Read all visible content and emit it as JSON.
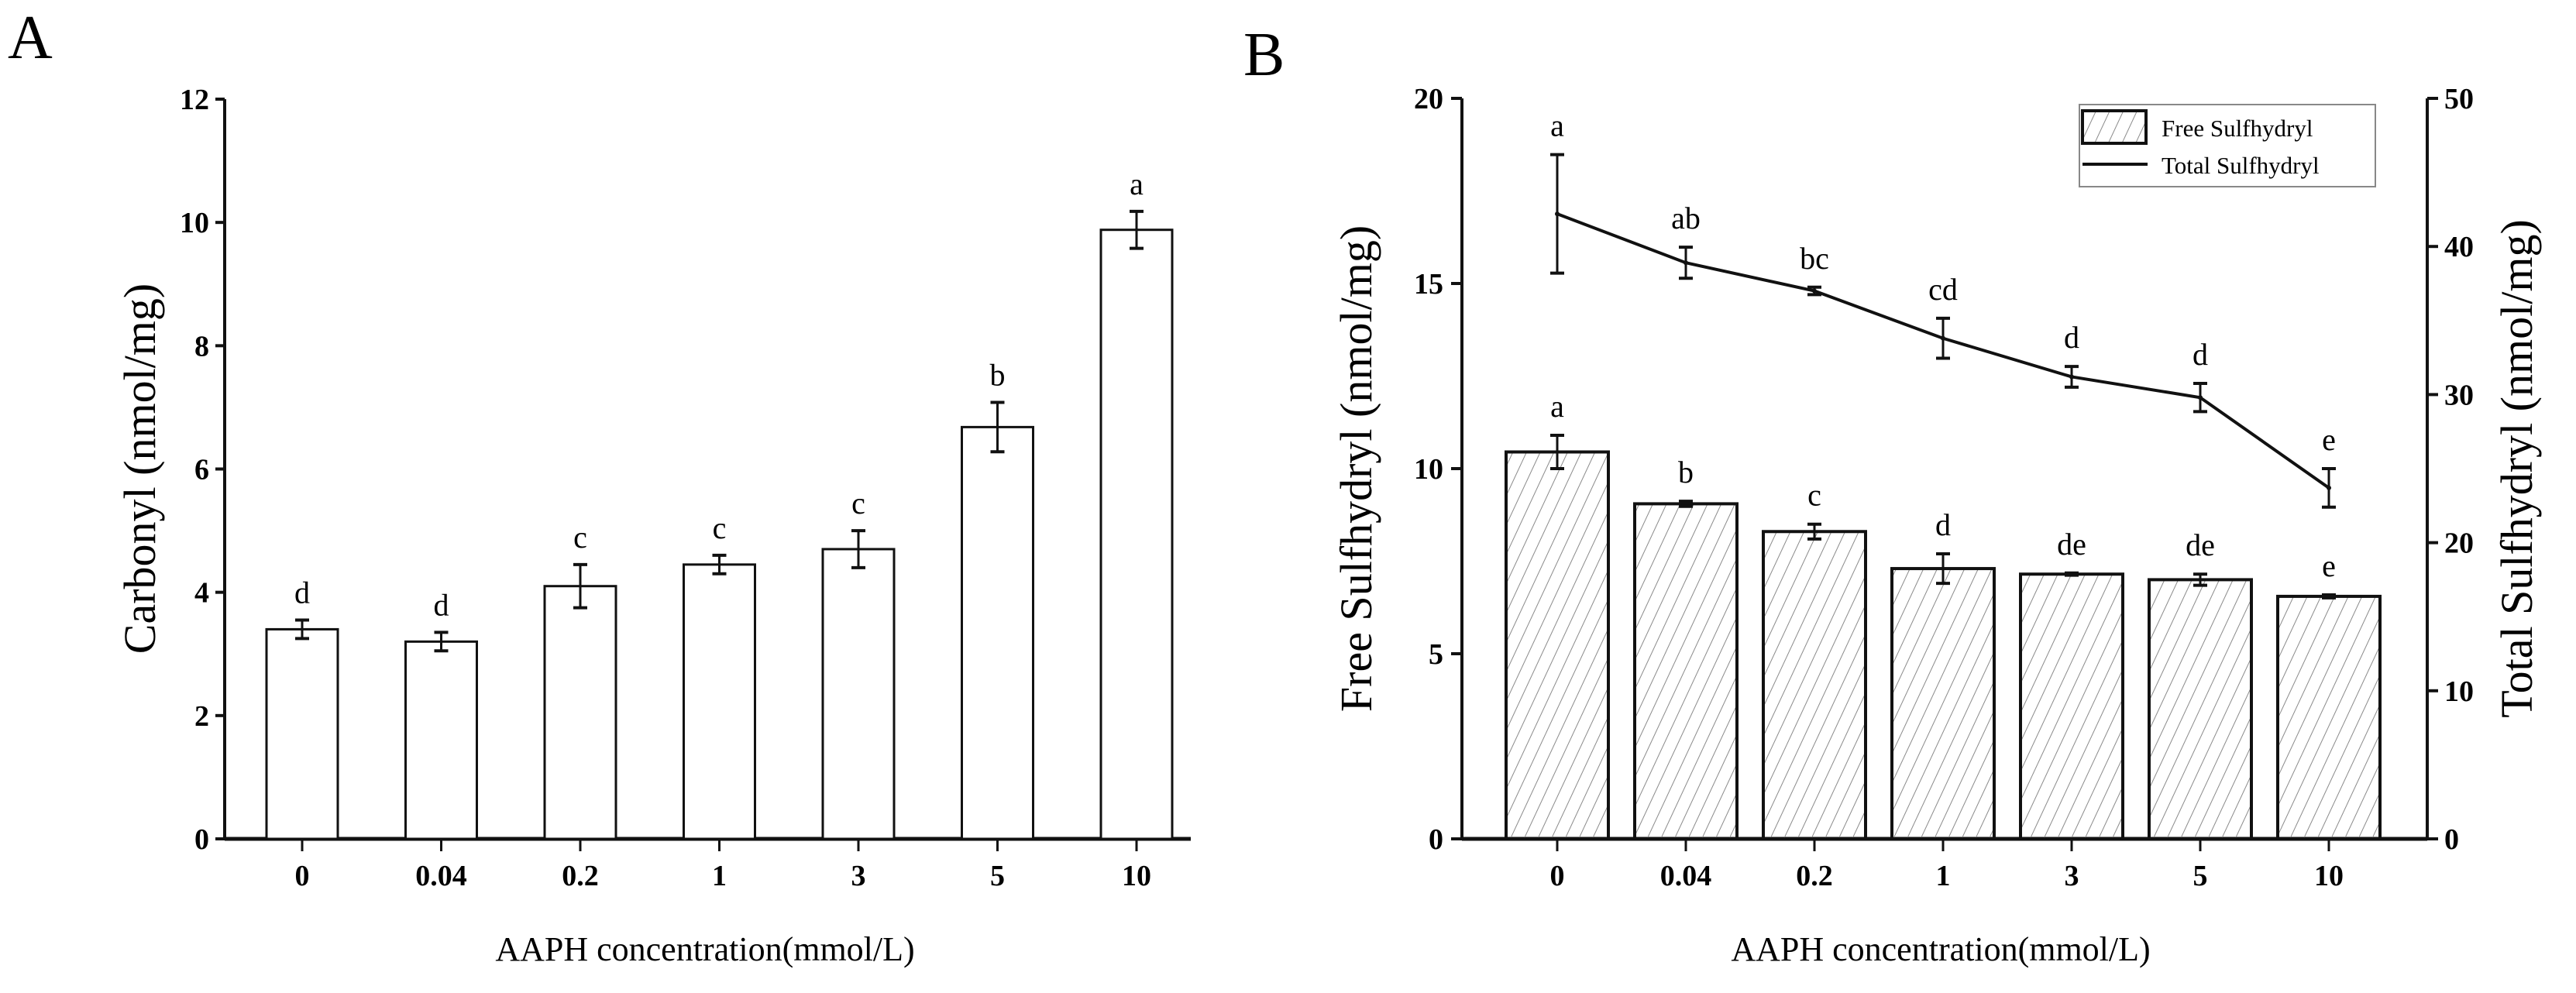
{
  "chart_data": [
    {
      "panel": "A",
      "type": "bar",
      "categories": [
        "0",
        "0.04",
        "0.2",
        "1",
        "3",
        "5",
        "10"
      ],
      "values": [
        3.4,
        3.2,
        4.1,
        4.45,
        4.7,
        6.68,
        9.88
      ],
      "errors": [
        0.15,
        0.15,
        0.35,
        0.15,
        0.3,
        0.4,
        0.3
      ],
      "significance": [
        "d",
        "d",
        "c",
        "c",
        "c",
        "b",
        "a"
      ],
      "xlabel": "AAPH concentration(mmol/L)",
      "ylabel": "Carbonyl (nmol/mg)",
      "ylim": [
        0,
        12
      ],
      "yticks": [
        "0",
        "2",
        "4",
        "6",
        "8",
        "10",
        "12"
      ],
      "grid": false
    },
    {
      "panel": "B",
      "type": "bar+line",
      "categories": [
        "0",
        "0.04",
        "0.2",
        "1",
        "3",
        "5",
        "10"
      ],
      "series": [
        {
          "name": "Free Sulfhydryl",
          "type": "bar",
          "axis": "left",
          "values": [
            10.45,
            9.05,
            8.3,
            7.3,
            7.15,
            7.0,
            6.55
          ],
          "errors": [
            0.45,
            0.07,
            0.2,
            0.4,
            0.03,
            0.15,
            0.04
          ],
          "significance": [
            "a",
            "b",
            "c",
            "d",
            "de",
            "de",
            "e"
          ]
        },
        {
          "name": "Total Sulfhydryl",
          "type": "line",
          "axis": "right",
          "values": [
            42.2,
            38.9,
            37.0,
            33.8,
            31.2,
            29.8,
            23.7
          ],
          "errors": [
            4.0,
            1.05,
            0.25,
            1.35,
            0.7,
            0.95,
            1.3
          ],
          "significance": [
            "a",
            "ab",
            "bc",
            "cd",
            "d",
            "d",
            "e"
          ]
        }
      ],
      "xlabel": "AAPH concentration(mmol/L)",
      "ylabel": "Free Sulfhydryl (nmol/mg)",
      "ylabel_right": "Total Sulfhydryl (nmol/mg)",
      "ylim": [
        0,
        20
      ],
      "ylim_right": [
        0,
        50
      ],
      "yticks": [
        "0",
        "5",
        "10",
        "15",
        "20"
      ],
      "yticks_right": [
        "0",
        "10",
        "20",
        "30",
        "40",
        "50"
      ],
      "legend": "top-right",
      "grid": false
    }
  ],
  "colors": {
    "ink": "#111111",
    "hatch": "#8a8a8a",
    "legend_border": "#888888"
  }
}
